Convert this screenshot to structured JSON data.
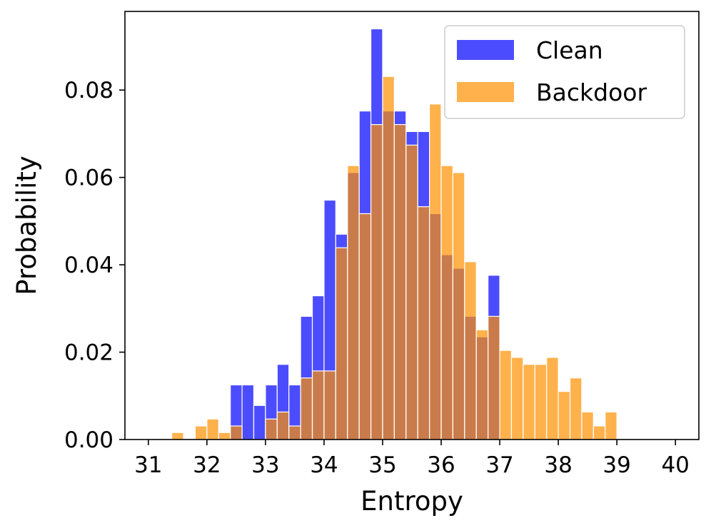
{
  "chart_data": {
    "type": "bar",
    "xlabel": "Entropy",
    "ylabel": "Probability",
    "xlim": [
      30.6,
      40.4
    ],
    "ylim": [
      0,
      0.098
    ],
    "xticks": [
      31,
      32,
      33,
      34,
      35,
      36,
      37,
      38,
      39,
      40
    ],
    "xtick_labels": [
      "31",
      "32",
      "33",
      "34",
      "35",
      "36",
      "37",
      "38",
      "39",
      "40"
    ],
    "yticks": [
      0.0,
      0.02,
      0.04,
      0.06,
      0.08
    ],
    "ytick_labels": [
      "0.00",
      "0.02",
      "0.04",
      "0.06",
      "0.08"
    ],
    "grid": false,
    "legend_position": "top-right",
    "bin_width": 0.2,
    "series": [
      {
        "name": "Clean",
        "color": "#0000ff",
        "alpha": 0.7,
        "bins": [
          {
            "x0": 32.4,
            "value": 0.0125
          },
          {
            "x0": 32.6,
            "value": 0.0125
          },
          {
            "x0": 32.8,
            "value": 0.0078
          },
          {
            "x0": 33.0,
            "value": 0.0125
          },
          {
            "x0": 33.2,
            "value": 0.0172
          },
          {
            "x0": 33.4,
            "value": 0.0125
          },
          {
            "x0": 33.6,
            "value": 0.0282
          },
          {
            "x0": 33.8,
            "value": 0.0329
          },
          {
            "x0": 34.0,
            "value": 0.0548
          },
          {
            "x0": 34.2,
            "value": 0.047
          },
          {
            "x0": 34.4,
            "value": 0.0611
          },
          {
            "x0": 34.6,
            "value": 0.0752
          },
          {
            "x0": 34.8,
            "value": 0.094
          },
          {
            "x0": 35.0,
            "value": 0.0752
          },
          {
            "x0": 35.2,
            "value": 0.0752
          },
          {
            "x0": 35.4,
            "value": 0.0705
          },
          {
            "x0": 35.6,
            "value": 0.0705
          },
          {
            "x0": 35.8,
            "value": 0.0517
          },
          {
            "x0": 36.0,
            "value": 0.0423
          },
          {
            "x0": 36.2,
            "value": 0.0392
          },
          {
            "x0": 36.4,
            "value": 0.0282
          },
          {
            "x0": 36.6,
            "value": 0.0235
          },
          {
            "x0": 36.8,
            "value": 0.0376
          }
        ]
      },
      {
        "name": "Backdoor",
        "color": "#ff9000",
        "alpha": 0.7,
        "bins": [
          {
            "x0": 31.4,
            "value": 0.0016
          },
          {
            "x0": 31.6,
            "value": 0.0
          },
          {
            "x0": 31.8,
            "value": 0.0031
          },
          {
            "x0": 32.0,
            "value": 0.0047
          },
          {
            "x0": 32.2,
            "value": 0.0016
          },
          {
            "x0": 32.4,
            "value": 0.0031
          },
          {
            "x0": 32.6,
            "value": 0.0
          },
          {
            "x0": 32.8,
            "value": 0.0
          },
          {
            "x0": 33.0,
            "value": 0.0047
          },
          {
            "x0": 33.2,
            "value": 0.0063
          },
          {
            "x0": 33.4,
            "value": 0.0031
          },
          {
            "x0": 33.6,
            "value": 0.0141
          },
          {
            "x0": 33.8,
            "value": 0.0157
          },
          {
            "x0": 34.0,
            "value": 0.0157
          },
          {
            "x0": 34.2,
            "value": 0.0439
          },
          {
            "x0": 34.4,
            "value": 0.0627
          },
          {
            "x0": 34.6,
            "value": 0.0517
          },
          {
            "x0": 34.8,
            "value": 0.0721
          },
          {
            "x0": 35.0,
            "value": 0.0831
          },
          {
            "x0": 35.2,
            "value": 0.0721
          },
          {
            "x0": 35.4,
            "value": 0.0674
          },
          {
            "x0": 35.6,
            "value": 0.0533
          },
          {
            "x0": 35.8,
            "value": 0.0768
          },
          {
            "x0": 36.0,
            "value": 0.0627
          },
          {
            "x0": 36.2,
            "value": 0.0611
          },
          {
            "x0": 36.4,
            "value": 0.0407
          },
          {
            "x0": 36.6,
            "value": 0.0251
          },
          {
            "x0": 36.8,
            "value": 0.0282
          },
          {
            "x0": 37.0,
            "value": 0.0204
          },
          {
            "x0": 37.2,
            "value": 0.0188
          },
          {
            "x0": 37.4,
            "value": 0.0172
          },
          {
            "x0": 37.6,
            "value": 0.0172
          },
          {
            "x0": 37.8,
            "value": 0.0188
          },
          {
            "x0": 38.0,
            "value": 0.011
          },
          {
            "x0": 38.2,
            "value": 0.0141
          },
          {
            "x0": 38.4,
            "value": 0.0063
          },
          {
            "x0": 38.6,
            "value": 0.0031
          },
          {
            "x0": 38.8,
            "value": 0.0063
          }
        ]
      }
    ]
  }
}
